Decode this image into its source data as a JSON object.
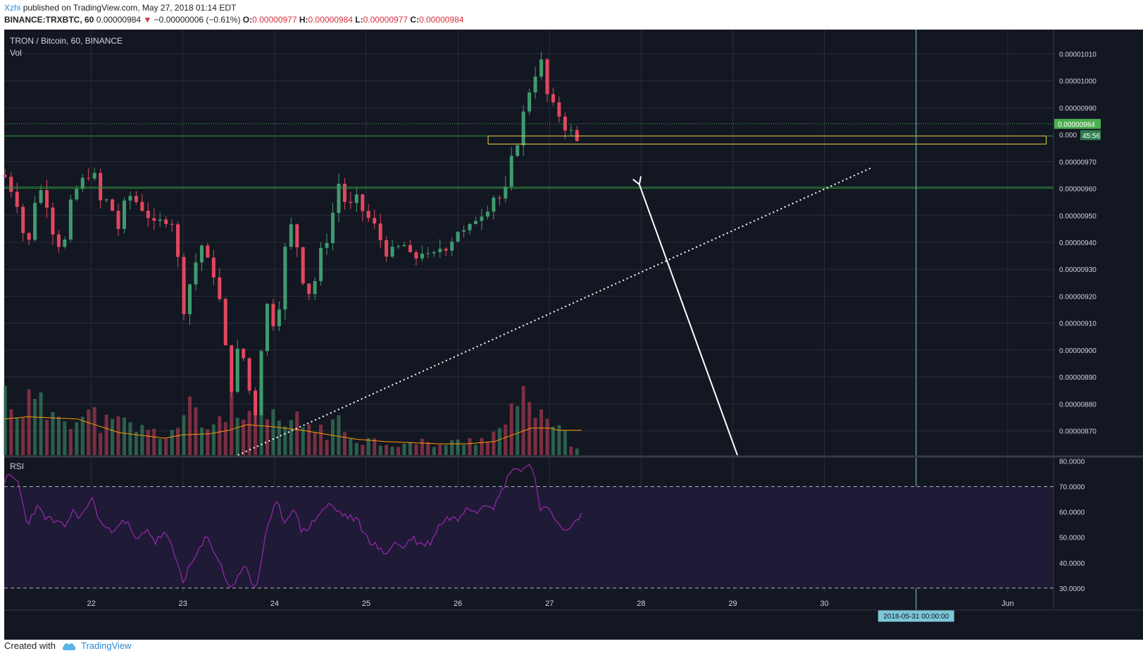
{
  "header": {
    "author": "Xzhi",
    "published_text": "published on TradingView.com, May 27, 2018 01:14 EDT",
    "symbol": "BINANCE:TRXBTC, 60",
    "last_price": "0.00000984",
    "change_arrow": "▼",
    "change": "−0.00000006 (−0.61%)",
    "open_label": "O:",
    "open": "0.00000977",
    "high_label": "H:",
    "high": "0.00000984",
    "low_label": "L:",
    "low": "0.00000977",
    "close_label": "C:",
    "close": "0.00000984"
  },
  "footer": {
    "created_with": "Created with",
    "brand": "TradingView",
    "icon": "tradingview-cloud-icon"
  },
  "colors": {
    "background": "#131722",
    "grid": "#2a2e39",
    "up": "#3f9a70",
    "down": "#e2475e",
    "vol_ma": "#ff9800",
    "rsi": "#9c27b0",
    "rsi_band": "#1f1a36",
    "support": "#2e9e3e",
    "box": "#e8d04a",
    "price_badge": "#4caf50",
    "crosshair": "#7cc7d8"
  },
  "chart_data": {
    "type": "candlestick",
    "title": "TRON / Bitcoin, 60, BINANCE",
    "volume_label": "Vol",
    "x_ticks": [
      "22",
      "23",
      "24",
      "25",
      "26",
      "27",
      "28",
      "29",
      "30",
      "Jun"
    ],
    "x_tick_days": [
      22,
      23,
      24,
      25,
      26,
      27,
      28,
      29,
      30,
      32
    ],
    "x_range_days": [
      21.05,
      32.5
    ],
    "y_ticks": [
      "0.00001010",
      "0.00001000",
      "0.00000990",
      "0.00000970",
      "0.00000960",
      "0.00000950",
      "0.00000940",
      "0.00000930",
      "0.00000920",
      "0.00000910",
      "0.00000900",
      "0.00000890",
      "0.00000880",
      "0.00000870"
    ],
    "y_tick_values": [
      1010,
      1000,
      990,
      970,
      960,
      950,
      940,
      930,
      920,
      910,
      900,
      890,
      880,
      870
    ],
    "y_range_satoshi_e-2": [
      861,
      1019
    ],
    "last_price_label": "0.00000984",
    "countdown_label": "45:56",
    "partial_label": "0.000",
    "support_lines": [
      979.5,
      960.5
    ],
    "support_band_lower": 960,
    "box_top": 979.5,
    "box_bottom": 976.5,
    "box_start_day": 26.33,
    "box_end_day": 32.42,
    "trendline": {
      "from": [
        23.6,
        861
      ],
      "to": [
        30.5,
        967.5
      ]
    },
    "arrow": {
      "from": [
        29.05,
        861
      ],
      "to": [
        27.98,
        961.5
      ]
    },
    "crosshair_day": 31.0,
    "crosshair_label": "2018-05-31 00:00:00",
    "candles_ohlc_anchors": [
      [
        21.05,
        965
      ],
      [
        21.1,
        962
      ],
      [
        21.2,
        955
      ],
      [
        21.3,
        935
      ],
      [
        21.4,
        960
      ],
      [
        21.5,
        958
      ],
      [
        21.6,
        942
      ],
      [
        21.7,
        938
      ],
      [
        21.8,
        958
      ],
      [
        21.9,
        962
      ],
      [
        22.0,
        968
      ],
      [
        22.1,
        955
      ],
      [
        22.2,
        955
      ],
      [
        22.3,
        945
      ],
      [
        22.4,
        958
      ],
      [
        22.5,
        955
      ],
      [
        22.6,
        952
      ],
      [
        22.7,
        944
      ],
      [
        22.8,
        950
      ],
      [
        22.9,
        948
      ],
      [
        23.0,
        915
      ],
      [
        23.1,
        928
      ],
      [
        23.2,
        940
      ],
      [
        23.25,
        930
      ],
      [
        23.3,
        935
      ],
      [
        23.4,
        918
      ],
      [
        23.5,
        890
      ],
      [
        23.55,
        885
      ],
      [
        23.6,
        900
      ],
      [
        23.7,
        895
      ],
      [
        23.75,
        875
      ],
      [
        23.8,
        878
      ],
      [
        23.85,
        900
      ],
      [
        23.9,
        918
      ],
      [
        24.0,
        910
      ],
      [
        24.05,
        918
      ],
      [
        24.1,
        935
      ],
      [
        24.2,
        948
      ],
      [
        24.3,
        928
      ],
      [
        24.4,
        920
      ],
      [
        24.5,
        935
      ],
      [
        24.6,
        945
      ],
      [
        24.7,
        962
      ],
      [
        24.8,
        952
      ],
      [
        24.9,
        955
      ],
      [
        25.0,
        950
      ],
      [
        25.1,
        945
      ],
      [
        25.2,
        938
      ],
      [
        25.3,
        935
      ],
      [
        25.4,
        940
      ],
      [
        25.5,
        932
      ],
      [
        25.6,
        938
      ],
      [
        25.7,
        932
      ],
      [
        25.8,
        938
      ],
      [
        25.9,
        940
      ],
      [
        26.0,
        945
      ],
      [
        26.1,
        942
      ],
      [
        26.2,
        950
      ],
      [
        26.3,
        953
      ],
      [
        26.4,
        958
      ],
      [
        26.5,
        955
      ],
      [
        26.6,
        972
      ],
      [
        26.7,
        985
      ],
      [
        26.8,
        1000
      ],
      [
        26.9,
        1008
      ],
      [
        27.0,
        990
      ],
      [
        27.1,
        988
      ],
      [
        27.2,
        982
      ],
      [
        27.3,
        977
      ],
      [
        27.35,
        984
      ]
    ],
    "volume_levels": [
      [
        21.05,
        0.6
      ],
      [
        21.2,
        0.45
      ],
      [
        21.35,
        0.52
      ],
      [
        21.5,
        0.4
      ],
      [
        21.7,
        0.48
      ],
      [
        21.85,
        0.32
      ],
      [
        22.0,
        0.38
      ],
      [
        22.2,
        0.28
      ],
      [
        22.4,
        0.3
      ],
      [
        22.6,
        0.22
      ],
      [
        22.8,
        0.2
      ],
      [
        22.9,
        0.25
      ],
      [
        23.0,
        0.32
      ],
      [
        23.1,
        0.45
      ],
      [
        23.2,
        0.3
      ],
      [
        23.3,
        0.28
      ],
      [
        23.4,
        0.35
      ],
      [
        23.5,
        0.55
      ],
      [
        23.6,
        0.3
      ],
      [
        23.7,
        0.38
      ],
      [
        23.8,
        0.45
      ],
      [
        23.9,
        0.3
      ],
      [
        24.0,
        0.35
      ],
      [
        24.1,
        0.28
      ],
      [
        24.2,
        0.32
      ],
      [
        24.3,
        0.3
      ],
      [
        24.4,
        0.28
      ],
      [
        24.5,
        0.25
      ],
      [
        24.6,
        0.22
      ],
      [
        24.7,
        0.3
      ],
      [
        24.8,
        0.2
      ],
      [
        24.9,
        0.18
      ],
      [
        25.0,
        0.15
      ],
      [
        25.2,
        0.12
      ],
      [
        25.4,
        0.1
      ],
      [
        25.6,
        0.12
      ],
      [
        25.8,
        0.1
      ],
      [
        26.0,
        0.12
      ],
      [
        26.2,
        0.15
      ],
      [
        26.4,
        0.2
      ],
      [
        26.5,
        0.3
      ],
      [
        26.6,
        0.38
      ],
      [
        26.7,
        0.45
      ],
      [
        26.8,
        0.75
      ],
      [
        26.85,
        0.42
      ],
      [
        26.9,
        0.32
      ],
      [
        27.0,
        0.28
      ],
      [
        27.1,
        0.22
      ],
      [
        27.2,
        0.15
      ],
      [
        27.3,
        0.1
      ],
      [
        27.35,
        0.04
      ]
    ],
    "volume_ma": [
      [
        21.05,
        0.32
      ],
      [
        21.3,
        0.34
      ],
      [
        21.6,
        0.33
      ],
      [
        21.85,
        0.32
      ],
      [
        22.0,
        0.28
      ],
      [
        22.3,
        0.2
      ],
      [
        22.6,
        0.17
      ],
      [
        22.8,
        0.15
      ],
      [
        23.0,
        0.18
      ],
      [
        23.3,
        0.19
      ],
      [
        23.5,
        0.22
      ],
      [
        23.7,
        0.27
      ],
      [
        24.0,
        0.25
      ],
      [
        24.3,
        0.22
      ],
      [
        24.6,
        0.18
      ],
      [
        24.9,
        0.14
      ],
      [
        25.2,
        0.12
      ],
      [
        25.5,
        0.11
      ],
      [
        25.8,
        0.1
      ],
      [
        26.1,
        0.1
      ],
      [
        26.4,
        0.12
      ],
      [
        26.6,
        0.18
      ],
      [
        26.8,
        0.24
      ],
      [
        27.0,
        0.24
      ],
      [
        27.1,
        0.22
      ],
      [
        27.35,
        0.22
      ]
    ],
    "rsi": {
      "label": "RSI",
      "y_ticks": [
        "80.0000",
        "70.0000",
        "60.0000",
        "50.0000",
        "40.0000",
        "30.0000"
      ],
      "y_tick_values": [
        80,
        70,
        60,
        50,
        40,
        30
      ],
      "y_range": [
        28,
        81
      ],
      "band": [
        30,
        70
      ],
      "points": [
        [
          21.05,
          72
        ],
        [
          21.1,
          74
        ],
        [
          21.2,
          72
        ],
        [
          21.3,
          55
        ],
        [
          21.4,
          62
        ],
        [
          21.5,
          58
        ],
        [
          21.6,
          56
        ],
        [
          21.7,
          54
        ],
        [
          21.8,
          60
        ],
        [
          21.9,
          58
        ],
        [
          22.0,
          66
        ],
        [
          22.1,
          56
        ],
        [
          22.2,
          52
        ],
        [
          22.3,
          56
        ],
        [
          22.4,
          55
        ],
        [
          22.5,
          48
        ],
        [
          22.6,
          54
        ],
        [
          22.7,
          48
        ],
        [
          22.8,
          52
        ],
        [
          22.9,
          44
        ],
        [
          23.0,
          33
        ],
        [
          23.1,
          40
        ],
        [
          23.2,
          46
        ],
        [
          23.25,
          50
        ],
        [
          23.3,
          48
        ],
        [
          23.4,
          40
        ],
        [
          23.5,
          31
        ],
        [
          23.55,
          30
        ],
        [
          23.6,
          36
        ],
        [
          23.7,
          38
        ],
        [
          23.75,
          32
        ],
        [
          23.8,
          30
        ],
        [
          23.9,
          50
        ],
        [
          24.0,
          62
        ],
        [
          24.05,
          64
        ],
        [
          24.1,
          55
        ],
        [
          24.2,
          62
        ],
        [
          24.3,
          52
        ],
        [
          24.4,
          55
        ],
        [
          24.5,
          60
        ],
        [
          24.6,
          63
        ],
        [
          24.7,
          60
        ],
        [
          24.8,
          58
        ],
        [
          24.9,
          57
        ],
        [
          25.0,
          50
        ],
        [
          25.1,
          47
        ],
        [
          25.2,
          43
        ],
        [
          25.3,
          48
        ],
        [
          25.4,
          46
        ],
        [
          25.5,
          50
        ],
        [
          25.6,
          47
        ],
        [
          25.7,
          48
        ],
        [
          25.8,
          55
        ],
        [
          25.9,
          58
        ],
        [
          26.0,
          57
        ],
        [
          26.1,
          63
        ],
        [
          26.2,
          60
        ],
        [
          26.3,
          64
        ],
        [
          26.4,
          62
        ],
        [
          26.5,
          70
        ],
        [
          26.6,
          78
        ],
        [
          26.7,
          76
        ],
        [
          26.8,
          80
        ],
        [
          26.9,
          62
        ],
        [
          27.0,
          60
        ],
        [
          27.1,
          56
        ],
        [
          27.2,
          52
        ],
        [
          27.35,
          59
        ]
      ]
    }
  }
}
